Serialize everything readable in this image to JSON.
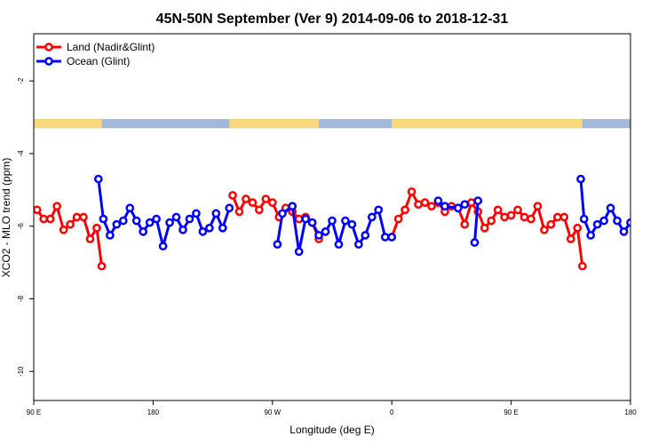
{
  "chart_data": {
    "type": "line",
    "title": "45N-50N September (Ver 9)   2014-09-06 to 2018-12-31",
    "xlabel": "Longitude (deg E)",
    "ylabel": "XCO2 - MLO trend (ppm)",
    "xlim": [
      90,
      450
    ],
    "ylim": [
      -10.8,
      -0.7
    ],
    "x_ticks": [
      {
        "value": 90,
        "label": "90 E"
      },
      {
        "value": 162,
        "label": "180"
      },
      {
        "value": 234,
        "label": "90 W"
      },
      {
        "value": 306,
        "label": "0"
      },
      {
        "value": 378,
        "label": "90 E"
      },
      {
        "value": 450,
        "label": "180"
      }
    ],
    "y_ticks": [
      -2,
      -4,
      -6,
      -8,
      -10
    ],
    "legend_position": "top-left",
    "land_band": {
      "top_value": -3.05,
      "bottom_value": -3.3,
      "ocean_color": "#a2b8d8",
      "land_color": "#f9d77a"
    },
    "series": [
      {
        "name": "Land (Nadir&Glint)",
        "color": "#ff0000",
        "points": [
          [
            92,
            -5.55
          ],
          [
            96,
            -5.8
          ],
          [
            100,
            -5.8
          ],
          [
            104,
            -5.45
          ],
          [
            108,
            -6.1
          ],
          [
            112,
            -5.95
          ],
          [
            116,
            -5.75
          ],
          [
            120,
            -5.75
          ],
          [
            124,
            -6.35
          ],
          [
            128,
            -6.05
          ],
          [
            131,
            -7.1
          ],
          null,
          [
            210,
            -5.15
          ],
          [
            214,
            -5.6
          ],
          [
            218,
            -5.25
          ],
          [
            222,
            -5.35
          ],
          [
            226,
            -5.55
          ],
          [
            230,
            -5.25
          ],
          [
            234,
            -5.35
          ],
          [
            238,
            -5.75
          ],
          [
            242,
            -5.5
          ],
          [
            246,
            -5.6
          ],
          [
            250,
            -5.8
          ],
          [
            254,
            -5.75
          ],
          [
            258,
            -5.9
          ],
          [
            262,
            -6.35
          ],
          null,
          [
            306,
            -6.3
          ],
          [
            310,
            -5.8
          ],
          [
            314,
            -5.55
          ],
          [
            318,
            -5.05
          ],
          [
            322,
            -5.4
          ],
          [
            326,
            -5.35
          ],
          [
            330,
            -5.45
          ],
          [
            334,
            -5.35
          ],
          [
            338,
            -5.6
          ],
          [
            342,
            -5.45
          ],
          [
            346,
            -5.5
          ],
          [
            350,
            -5.95
          ],
          [
            354,
            -5.35
          ],
          [
            358,
            -5.6
          ],
          [
            362,
            -6.05
          ],
          [
            366,
            -5.85
          ],
          [
            370,
            -5.55
          ],
          [
            374,
            -5.75
          ],
          [
            378,
            -5.7
          ],
          [
            382,
            -5.55
          ],
          [
            386,
            -5.75
          ],
          [
            390,
            -5.8
          ],
          [
            394,
            -5.45
          ],
          [
            398,
            -6.1
          ],
          [
            402,
            -5.95
          ],
          [
            406,
            -5.75
          ],
          [
            410,
            -5.75
          ],
          [
            414,
            -6.35
          ],
          [
            418,
            -6.05
          ],
          [
            421,
            -7.1
          ]
        ]
      },
      {
        "name": "Ocean (Glint)",
        "color": "#0000ff",
        "points": [
          [
            129,
            -4.7
          ],
          [
            132,
            -5.8
          ],
          [
            136,
            -6.25
          ],
          [
            140,
            -5.95
          ],
          [
            144,
            -5.85
          ],
          [
            148,
            -5.5
          ],
          [
            152,
            -5.85
          ],
          [
            156,
            -6.15
          ],
          [
            160,
            -5.9
          ],
          [
            164,
            -5.8
          ],
          [
            168,
            -6.55
          ],
          [
            172,
            -5.9
          ],
          [
            176,
            -5.75
          ],
          [
            180,
            -6.1
          ],
          [
            184,
            -5.8
          ],
          [
            188,
            -5.65
          ],
          [
            192,
            -6.15
          ],
          [
            196,
            -6.05
          ],
          [
            200,
            -5.65
          ],
          [
            204,
            -6.05
          ],
          [
            208,
            -5.5
          ],
          null,
          [
            237,
            -6.5
          ],
          [
            240,
            -5.65
          ],
          [
            246,
            -5.45
          ],
          [
            250,
            -6.7
          ],
          [
            254,
            -5.8
          ],
          [
            258,
            -5.9
          ],
          [
            262,
            -6.25
          ],
          [
            266,
            -6.15
          ],
          [
            270,
            -5.85
          ],
          [
            274,
            -6.5
          ],
          [
            278,
            -5.85
          ],
          [
            282,
            -5.95
          ],
          [
            286,
            -6.5
          ],
          [
            290,
            -6.25
          ],
          [
            294,
            -5.75
          ],
          [
            298,
            -5.55
          ],
          [
            302,
            -6.3
          ],
          [
            306,
            -6.3
          ],
          null,
          [
            334,
            -5.3
          ],
          [
            338,
            -5.45
          ],
          [
            346,
            -5.5
          ],
          [
            350,
            -5.4
          ],
          null,
          [
            356,
            -6.45
          ],
          [
            358,
            -5.3
          ],
          null,
          [
            420,
            -4.7
          ],
          [
            422,
            -5.8
          ],
          [
            426,
            -6.25
          ],
          [
            430,
            -5.95
          ],
          [
            434,
            -5.85
          ],
          [
            438,
            -5.5
          ],
          [
            442,
            -5.85
          ],
          [
            446,
            -6.15
          ],
          [
            450,
            -5.9
          ]
        ]
      }
    ]
  }
}
